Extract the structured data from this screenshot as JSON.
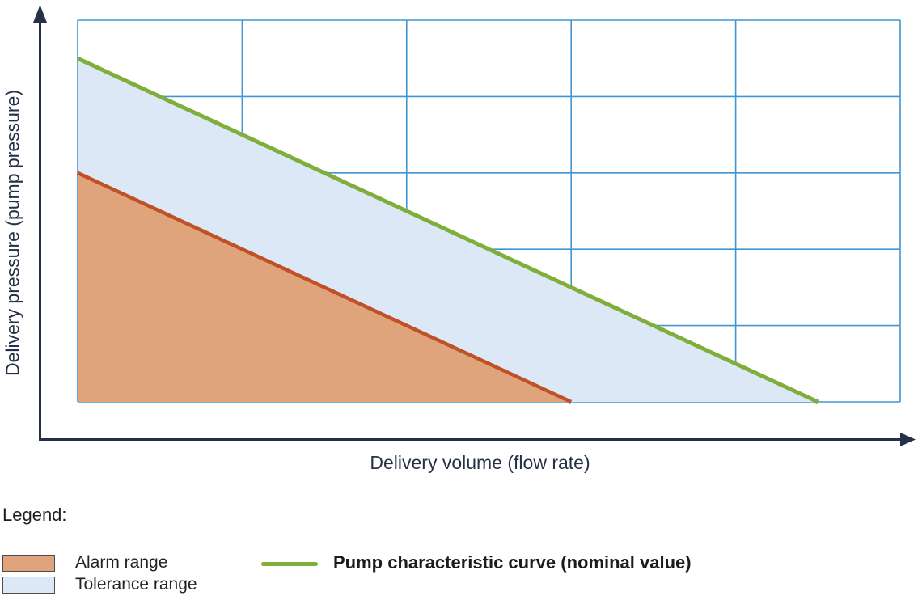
{
  "figure": {
    "type": "pump-characteristic-diagram"
  },
  "axes": {
    "x_label": "Delivery volume (flow rate)",
    "y_label": "Delivery pressure (pump pressure)"
  },
  "legend": {
    "heading": "Legend:",
    "position": "bottom",
    "items": [
      {
        "label": "Alarm range",
        "swatch": "area",
        "color": "#dfa47c",
        "border_color": "#4d4d4d"
      },
      {
        "label": "Tolerance range",
        "swatch": "area",
        "color": "#dce8f6",
        "border_color": "#4d4d4d"
      },
      {
        "label": "Pump characteristic curve (nominal value)",
        "swatch": "line",
        "color": "#7fae3b"
      }
    ]
  },
  "chart_data": {
    "type": "area",
    "title": "",
    "xlabel": "Delivery volume (flow rate)",
    "ylabel": "Delivery pressure (pump pressure)",
    "x_range": [
      0,
      5
    ],
    "y_range": [
      0,
      5
    ],
    "grid": true,
    "grid_step": 1,
    "grid_color": "#4095d2",
    "axis_color": "#263048",
    "areas": [
      {
        "name": "Tolerance range",
        "points": [
          [
            0,
            4.5
          ],
          [
            4.5,
            0
          ],
          [
            0,
            0
          ]
        ],
        "color": "#dce8f6"
      },
      {
        "name": "Alarm range",
        "points": [
          [
            0,
            3
          ],
          [
            3,
            0
          ],
          [
            0,
            0
          ]
        ],
        "color": "#dfa47c"
      }
    ],
    "series": [
      {
        "name": "Pump characteristic curve (nominal value)",
        "type": "line",
        "points": [
          [
            0,
            4.5
          ],
          [
            4.5,
            0
          ]
        ],
        "color": "#7fae3b",
        "width": 5
      },
      {
        "name": "Alarm range boundary",
        "type": "line",
        "points": [
          [
            0,
            3
          ],
          [
            3,
            0
          ]
        ],
        "color": "#c05026",
        "width": 4.5
      }
    ]
  }
}
